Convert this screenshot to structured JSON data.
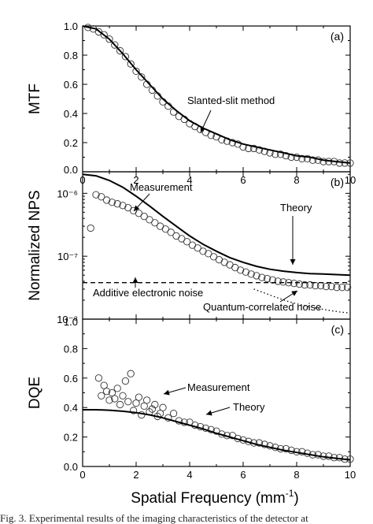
{
  "caption": "Fig. 3. Experimental results of the imaging characteristics of the detector at",
  "chart_data": [
    {
      "panel": "(a)",
      "type": "scatter",
      "ylabel": "MTF",
      "xlabel": "",
      "xlim": [
        0,
        10
      ],
      "ylim": [
        0,
        1
      ],
      "xticks": [
        "0",
        "2",
        "4",
        "6",
        "8",
        "10"
      ],
      "yticks": [
        "0.0",
        "0.2",
        "0.4",
        "0.6",
        "0.8",
        "1.0"
      ],
      "annotations": [
        "Slanted-slit method"
      ],
      "series": [
        {
          "kind": "markers",
          "x": [
            0.2,
            0.4,
            0.6,
            0.8,
            1.0,
            1.2,
            1.4,
            1.6,
            1.8,
            2.0,
            2.2,
            2.4,
            2.6,
            2.8,
            3.0,
            3.2,
            3.4,
            3.6,
            3.8,
            4.0,
            4.2,
            4.4,
            4.6,
            4.8,
            5.0,
            5.2,
            5.4,
            5.6,
            5.8,
            6.0,
            6.2,
            6.4,
            6.6,
            6.8,
            7.0,
            7.2,
            7.4,
            7.6,
            7.8,
            8.0,
            8.2,
            8.4,
            8.6,
            8.8,
            9.0,
            9.2,
            9.4,
            9.6,
            9.8,
            10.0
          ],
          "y": [
            0.99,
            0.98,
            0.96,
            0.94,
            0.91,
            0.87,
            0.83,
            0.79,
            0.74,
            0.69,
            0.65,
            0.6,
            0.56,
            0.52,
            0.48,
            0.45,
            0.41,
            0.38,
            0.36,
            0.33,
            0.31,
            0.29,
            0.27,
            0.25,
            0.24,
            0.22,
            0.21,
            0.2,
            0.19,
            0.17,
            0.16,
            0.16,
            0.15,
            0.14,
            0.13,
            0.12,
            0.12,
            0.11,
            0.1,
            0.1,
            0.09,
            0.09,
            0.08,
            0.08,
            0.07,
            0.07,
            0.07,
            0.06,
            0.06,
            0.06
          ]
        },
        {
          "kind": "line-solid",
          "x": [
            0,
            0.5,
            1,
            1.5,
            2,
            2.5,
            3,
            3.5,
            4,
            4.5,
            5,
            5.5,
            6,
            6.5,
            7,
            7.5,
            8,
            8.5,
            9,
            9.5,
            10
          ],
          "y": [
            1,
            0.98,
            0.91,
            0.81,
            0.7,
            0.6,
            0.5,
            0.42,
            0.35,
            0.3,
            0.26,
            0.22,
            0.19,
            0.17,
            0.15,
            0.13,
            0.11,
            0.1,
            0.08,
            0.07,
            0.06
          ]
        }
      ]
    },
    {
      "panel": "(b)",
      "type": "scatter",
      "ylabel": "Normalized NPS",
      "xlabel": "",
      "yscale": "log",
      "xlim": [
        0,
        10
      ],
      "ylim": [
        1e-08,
        2.2e-06
      ],
      "yticks": [
        "10⁻⁶",
        "10⁻⁷",
        "10⁻⁸"
      ],
      "annotations": [
        "Measurement",
        "Theory",
        "Additive electronic noise",
        "Quantum-correlated noise"
      ],
      "series": [
        {
          "kind": "markers",
          "x": [
            0.3,
            0.5,
            0.7,
            0.9,
            1.1,
            1.3,
            1.5,
            1.7,
            1.9,
            2.1,
            2.3,
            2.5,
            2.7,
            2.9,
            3.1,
            3.3,
            3.5,
            3.7,
            3.9,
            4.1,
            4.3,
            4.5,
            4.7,
            4.9,
            5.1,
            5.3,
            5.5,
            5.7,
            5.9,
            6.1,
            6.3,
            6.5,
            6.7,
            6.9,
            7.1,
            7.3,
            7.5,
            7.7,
            7.9,
            8.1,
            8.3,
            8.5,
            8.7,
            8.9,
            9.1,
            9.3,
            9.5,
            9.7,
            9.9
          ],
          "y": [
            2.8e-07,
            9.5e-07,
            8.8e-07,
            7.8e-07,
            7.2e-07,
            6.8e-07,
            6.4e-07,
            5.9e-07,
            5.3e-07,
            4.8e-07,
            4.3e-07,
            3.8e-07,
            3.4e-07,
            3e-07,
            2.7e-07,
            2.4e-07,
            2.1e-07,
            1.9e-07,
            1.7e-07,
            1.5e-07,
            1.35e-07,
            1.2e-07,
            1.1e-07,
            9.8e-08,
            8.8e-08,
            8e-08,
            7.3e-08,
            6.6e-08,
            6e-08,
            5.6e-08,
            5.2e-08,
            4.9e-08,
            4.6e-08,
            4.4e-08,
            4.2e-08,
            4e-08,
            3.9e-08,
            3.8e-08,
            3.7e-08,
            3.6e-08,
            3.5e-08,
            3.5e-08,
            3.4e-08,
            3.4e-08,
            3.3e-08,
            3.3e-08,
            3.2e-08,
            3.2e-08,
            3.2e-08
          ]
        },
        {
          "kind": "line-solid",
          "x": [
            0,
            0.5,
            1,
            1.5,
            2,
            2.5,
            3,
            3.5,
            4,
            4.5,
            5,
            5.5,
            6,
            6.5,
            7,
            7.5,
            8,
            8.5,
            9,
            9.5,
            10
          ],
          "y": [
            2e-06,
            1.9e-06,
            1.6e-06,
            1.25e-06,
            9e-07,
            6.3e-07,
            4.3e-07,
            3e-07,
            2.1e-07,
            1.55e-07,
            1.2e-07,
            9.5e-08,
            8e-08,
            6.9e-08,
            6.2e-08,
            5.8e-08,
            5.5e-08,
            5.3e-08,
            5.2e-08,
            5.1e-08,
            5e-08
          ]
        },
        {
          "kind": "line-dashed",
          "x": [
            0,
            10
          ],
          "y": [
            3.8e-08,
            3.8e-08
          ]
        },
        {
          "kind": "line-dotted",
          "x": [
            6.4,
            6.8,
            7.2,
            7.6,
            8.0,
            8.4,
            8.8,
            9.2,
            9.6,
            10
          ],
          "y": [
            3e-08,
            2.6e-08,
            2.25e-08,
            1.95e-08,
            1.75e-08,
            1.6e-08,
            1.48e-08,
            1.38e-08,
            1.3e-08,
            1.25e-08
          ]
        }
      ]
    },
    {
      "panel": "(c)",
      "type": "scatter",
      "ylabel": "DQE",
      "xlabel": "Spatial Frequency (mm",
      "xlabel_sup": "-1",
      "xlabel_tail": ")",
      "xlim": [
        0,
        10
      ],
      "ylim": [
        0,
        1
      ],
      "xticks": [
        "0",
        "2",
        "4",
        "6",
        "8",
        "10"
      ],
      "yticks": [
        "0.0",
        "0.2",
        "0.4",
        "0.6",
        "0.8",
        "1.0"
      ],
      "annotations": [
        "Measurement",
        "Theory"
      ],
      "series": [
        {
          "kind": "markers",
          "x": [
            0.6,
            0.7,
            0.8,
            0.9,
            1.0,
            1.1,
            1.2,
            1.3,
            1.4,
            1.5,
            1.6,
            1.7,
            1.8,
            1.9,
            2.0,
            2.1,
            2.2,
            2.3,
            2.4,
            2.5,
            2.6,
            2.7,
            2.8,
            2.9,
            3.0,
            3.2,
            3.4,
            3.6,
            3.8,
            4.0,
            4.2,
            4.4,
            4.6,
            4.8,
            5.0,
            5.2,
            5.4,
            5.6,
            5.8,
            6.0,
            6.2,
            6.4,
            6.6,
            6.8,
            7.0,
            7.2,
            7.4,
            7.6,
            7.8,
            8.0,
            8.2,
            8.4,
            8.6,
            8.8,
            9.0,
            9.2,
            9.4,
            9.6,
            9.8,
            10.0
          ],
          "y": [
            0.6,
            0.48,
            0.55,
            0.51,
            0.45,
            0.5,
            0.46,
            0.53,
            0.42,
            0.48,
            0.58,
            0.44,
            0.63,
            0.38,
            0.43,
            0.47,
            0.35,
            0.41,
            0.45,
            0.37,
            0.39,
            0.42,
            0.34,
            0.36,
            0.4,
            0.33,
            0.36,
            0.31,
            0.3,
            0.3,
            0.28,
            0.27,
            0.26,
            0.25,
            0.24,
            0.22,
            0.21,
            0.21,
            0.19,
            0.18,
            0.17,
            0.16,
            0.16,
            0.15,
            0.14,
            0.13,
            0.12,
            0.12,
            0.11,
            0.1,
            0.1,
            0.09,
            0.08,
            0.08,
            0.07,
            0.07,
            0.06,
            0.06,
            0.05,
            0.05
          ]
        },
        {
          "kind": "line-solid",
          "x": [
            0,
            0.5,
            1,
            1.5,
            2,
            2.5,
            3,
            3.5,
            4,
            4.5,
            5,
            5.5,
            6,
            6.5,
            7,
            7.5,
            8,
            8.5,
            9,
            9.5,
            10
          ],
          "y": [
            0.385,
            0.385,
            0.382,
            0.375,
            0.365,
            0.35,
            0.33,
            0.305,
            0.28,
            0.255,
            0.225,
            0.2,
            0.175,
            0.15,
            0.13,
            0.11,
            0.095,
            0.08,
            0.065,
            0.055,
            0.045
          ]
        }
      ]
    }
  ]
}
